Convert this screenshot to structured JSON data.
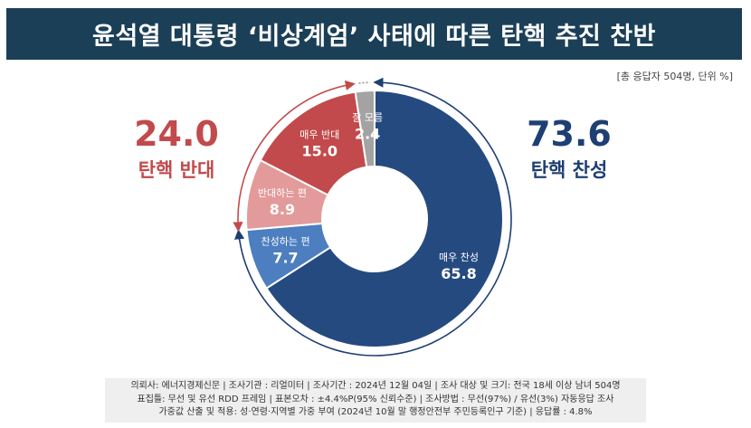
{
  "header": {
    "title": "윤석열 대통령 ‘비상계엄’ 사태에 따른 탄핵 추진 찬반"
  },
  "unit_note": "[총 응답자 504명, 단위 %]",
  "left_summary": {
    "value": "24.0",
    "label": "탄핵 반대"
  },
  "right_summary": {
    "value": "73.6",
    "label": "탄핵 찬성"
  },
  "colors": {
    "header_bg": "#1b3f57",
    "oppose": "#c24a4c",
    "support": "#1e3f73"
  },
  "chart_data": {
    "type": "pie",
    "donut": true,
    "title": "윤석열 대통령 ‘비상계엄’ 사태에 따른 탄핵 추진 찬반",
    "unit": "%",
    "slices": [
      {
        "label": "매우 찬성",
        "value": 65.8,
        "display": "65.8",
        "color": "#254a80"
      },
      {
        "label": "찬성하는 편",
        "value": 7.7,
        "display": "7.7",
        "color": "#4c7ec0"
      },
      {
        "label": "반대하는 편",
        "value": 8.9,
        "display": "8.9",
        "color": "#e39a9a"
      },
      {
        "label": "매우 반대",
        "value": 15.0,
        "display": "15.0",
        "color": "#c24a4c"
      },
      {
        "label": "잘 모름",
        "value": 2.4,
        "display": "2.4",
        "color": "#a3a3a3"
      }
    ],
    "groups": [
      {
        "label": "탄핵 찬성",
        "value": 73.6,
        "color": "#1e3f73"
      },
      {
        "label": "탄핵 반대",
        "value": 24.0,
        "color": "#c24a4c"
      }
    ]
  },
  "footer": {
    "line1": "의뢰사: 에너지경제신문 | 조사기관 : 리얼미터 | 조사기간 : 2024년 12월 04일 | 조사 대상 및 크기: 전국 18세 이상 남녀 504명",
    "line2": "표집틀: 무선 및 유선 RDD 프레임 | 표본오차 : ±4.4%P(95% 신뢰수준) | 조사방법 : 무선(97%) / 유선(3%) 자동응답 조사",
    "line3": "가중값 산출 및 적용: 성·연령·지역별 가중 부여 (2024년 10월 말 행정안전부 주민등록인구 기준) | 응답률 : 4.8%"
  }
}
